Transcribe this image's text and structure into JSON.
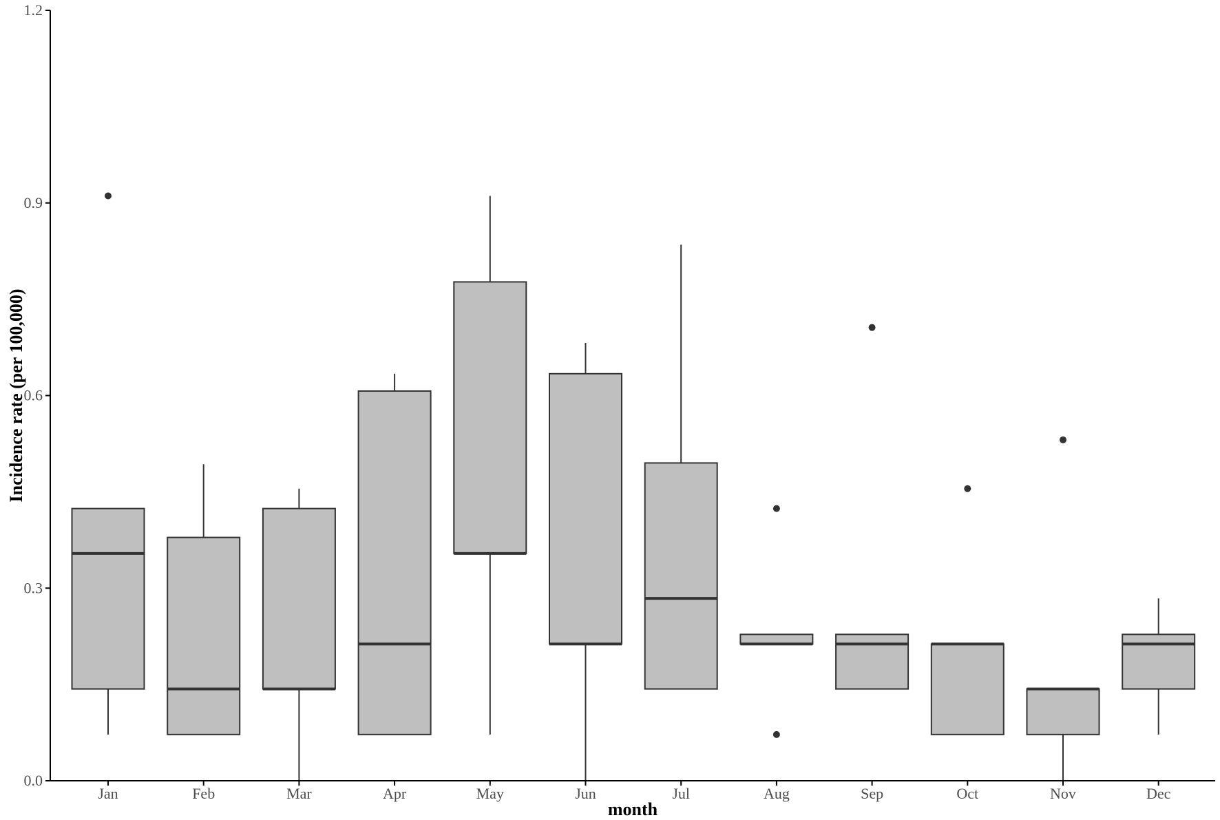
{
  "chart_data": {
    "type": "boxplot",
    "title": "",
    "xlabel": "month",
    "ylabel": "Incidence rate (per 100,000)",
    "ylim": [
      0,
      1.2
    ],
    "yticks": [
      "0.0",
      "0.3",
      "0.6",
      "0.9",
      "1.2"
    ],
    "grid": false,
    "categories": [
      "Jan",
      "Feb",
      "Mar",
      "Apr",
      "May",
      "Jun",
      "Jul",
      "Aug",
      "Sep",
      "Oct",
      "Nov",
      "Dec"
    ],
    "boxes": [
      {
        "month": "Jan",
        "whisker_low": 0.072,
        "q1": 0.143,
        "median": 0.354,
        "q3": 0.424,
        "whisker_high": 0.424,
        "outliers": [
          0.911
        ]
      },
      {
        "month": "Feb",
        "whisker_low": 0.072,
        "q1": 0.072,
        "median": 0.143,
        "q3": 0.379,
        "whisker_high": 0.493,
        "outliers": []
      },
      {
        "month": "Mar",
        "whisker_low": 0.0,
        "q1": 0.143,
        "median": 0.143,
        "q3": 0.424,
        "whisker_high": 0.455,
        "outliers": []
      },
      {
        "month": "Apr",
        "whisker_low": 0.072,
        "q1": 0.072,
        "median": 0.213,
        "q3": 0.607,
        "whisker_high": 0.634,
        "outliers": []
      },
      {
        "month": "May",
        "whisker_low": 0.072,
        "q1": 0.354,
        "median": 0.354,
        "q3": 0.777,
        "whisker_high": 0.911,
        "outliers": []
      },
      {
        "month": "Jun",
        "whisker_low": 0.0,
        "q1": 0.213,
        "median": 0.213,
        "q3": 0.634,
        "whisker_high": 0.682,
        "outliers": []
      },
      {
        "month": "Jul",
        "whisker_low": 0.143,
        "q1": 0.143,
        "median": 0.284,
        "q3": 0.495,
        "whisker_high": 0.835,
        "outliers": []
      },
      {
        "month": "Aug",
        "whisker_low": 0.213,
        "q1": 0.213,
        "median": 0.213,
        "q3": 0.228,
        "whisker_high": 0.228,
        "outliers": [
          0.072,
          0.424
        ]
      },
      {
        "month": "Sep",
        "whisker_low": 0.143,
        "q1": 0.143,
        "median": 0.213,
        "q3": 0.228,
        "whisker_high": 0.228,
        "outliers": [
          0.706
        ]
      },
      {
        "month": "Oct",
        "whisker_low": 0.072,
        "q1": 0.072,
        "median": 0.213,
        "q3": 0.213,
        "whisker_high": 0.213,
        "outliers": [
          0.455
        ]
      },
      {
        "month": "Nov",
        "whisker_low": 0.0,
        "q1": 0.072,
        "median": 0.143,
        "q3": 0.143,
        "whisker_high": 0.143,
        "outliers": [
          0.531
        ]
      },
      {
        "month": "Dec",
        "whisker_low": 0.072,
        "q1": 0.143,
        "median": 0.213,
        "q3": 0.228,
        "whisker_high": 0.284,
        "outliers": []
      }
    ],
    "colors": {
      "box_fill": "#bfbfbf",
      "line": "#333333",
      "axis": "#000000",
      "tick_text": "#4d4d4d"
    }
  }
}
